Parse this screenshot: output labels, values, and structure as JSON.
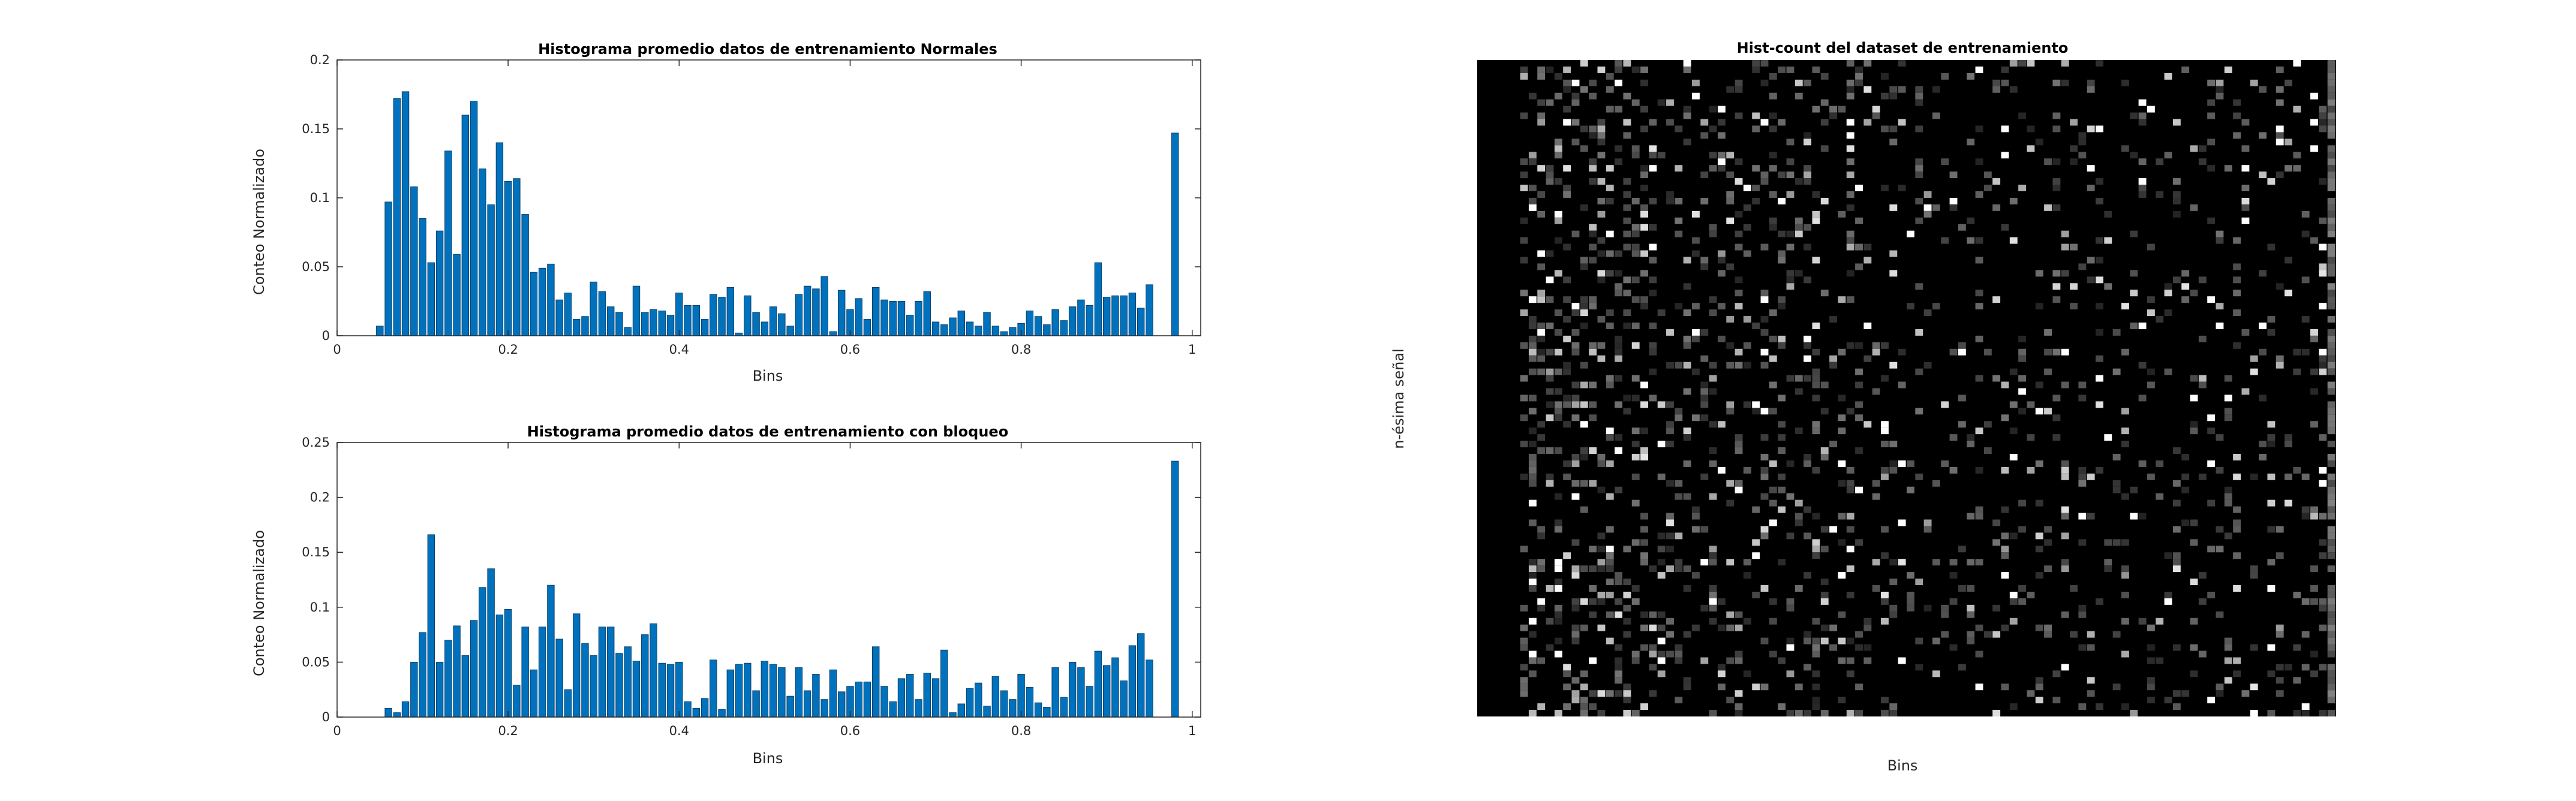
{
  "chart_data": [
    {
      "type": "bar",
      "title": "Histograma promedio datos de entrenamiento Normales",
      "xlabel": "Bins",
      "ylabel": "Conteo Normalizado",
      "xlim": [
        0,
        1.01
      ],
      "ylim": [
        0,
        0.2
      ],
      "xticks": [
        "0",
        "0.2",
        "0.4",
        "0.6",
        "0.8",
        "1"
      ],
      "yticks": [
        "0",
        "0.05",
        "0.1",
        "0.15",
        "0.2"
      ],
      "bar_color": "#0072BD",
      "bin_width": 0.01,
      "values": [
        0,
        0,
        0,
        0,
        0.007,
        0.097,
        0.172,
        0.177,
        0.108,
        0.085,
        0.053,
        0.076,
        0.134,
        0.059,
        0.16,
        0.17,
        0.121,
        0.095,
        0.14,
        0.112,
        0.114,
        0.088,
        0.046,
        0.049,
        0.052,
        0.026,
        0.031,
        0.012,
        0.014,
        0.039,
        0.032,
        0.021,
        0.017,
        0.006,
        0.036,
        0.017,
        0.019,
        0.018,
        0.015,
        0.031,
        0.022,
        0.022,
        0.012,
        0.03,
        0.028,
        0.035,
        0.002,
        0.029,
        0.017,
        0.01,
        0.021,
        0.016,
        0.007,
        0.03,
        0.036,
        0.034,
        0.043,
        0.003,
        0.033,
        0.019,
        0.027,
        0.012,
        0.035,
        0.026,
        0.025,
        0.025,
        0.015,
        0.025,
        0.032,
        0.01,
        0.008,
        0.013,
        0.018,
        0.01,
        0.007,
        0.017,
        0.007,
        0.003,
        0.006,
        0.009,
        0.018,
        0.014,
        0.008,
        0.019,
        0.011,
        0.021,
        0.026,
        0.022,
        0.053,
        0.028,
        0.029,
        0.029,
        0.031,
        0.02,
        0.037,
        0,
        0,
        0.147
      ]
    },
    {
      "type": "bar",
      "title": "Histograma promedio datos de entrenamiento con bloqueo",
      "xlabel": "Bins",
      "ylabel": "Conteo Normalizado",
      "xlim": [
        0,
        1.01
      ],
      "ylim": [
        0,
        0.25
      ],
      "xticks": [
        "0",
        "0.2",
        "0.4",
        "0.6",
        "0.8",
        "1"
      ],
      "yticks": [
        "0",
        "0.05",
        "0.1",
        "0.15",
        "0.2",
        "0.25"
      ],
      "bar_color": "#0072BD",
      "bin_width": 0.01,
      "values": [
        0,
        0,
        0,
        0,
        0,
        0.008,
        0.004,
        0.014,
        0.05,
        0.077,
        0.166,
        0.05,
        0.07,
        0.083,
        0.056,
        0.088,
        0.118,
        0.135,
        0.093,
        0.098,
        0.029,
        0.082,
        0.043,
        0.082,
        0.12,
        0.071,
        0.025,
        0.094,
        0.067,
        0.056,
        0.082,
        0.082,
        0.058,
        0.064,
        0.051,
        0.075,
        0.085,
        0.049,
        0.048,
        0.05,
        0.014,
        0.008,
        0.017,
        0.052,
        0.007,
        0.043,
        0.048,
        0.049,
        0.024,
        0.051,
        0.048,
        0.045,
        0.019,
        0.045,
        0.024,
        0.039,
        0.016,
        0.043,
        0.023,
        0.028,
        0.032,
        0.032,
        0.064,
        0.028,
        0.014,
        0.035,
        0.039,
        0.016,
        0.04,
        0.035,
        0.061,
        0.004,
        0.012,
        0.026,
        0.031,
        0.01,
        0.037,
        0.024,
        0.016,
        0.039,
        0.027,
        0.013,
        0.009,
        0.045,
        0.018,
        0.05,
        0.045,
        0.028,
        0.06,
        0.047,
        0.054,
        0.033,
        0.065,
        0.076,
        0.052,
        0,
        0,
        0.233
      ]
    },
    {
      "type": "heatmap",
      "title": "Hist-count del dataset de entrenamiento",
      "xlabel": "Bins",
      "ylabel": "n-ésima señal",
      "colormap": "gray",
      "background": "#000000",
      "description_of_pattern": "sparse bright cells on black background; higher density on the left columns, a bright column at far right"
    }
  ]
}
